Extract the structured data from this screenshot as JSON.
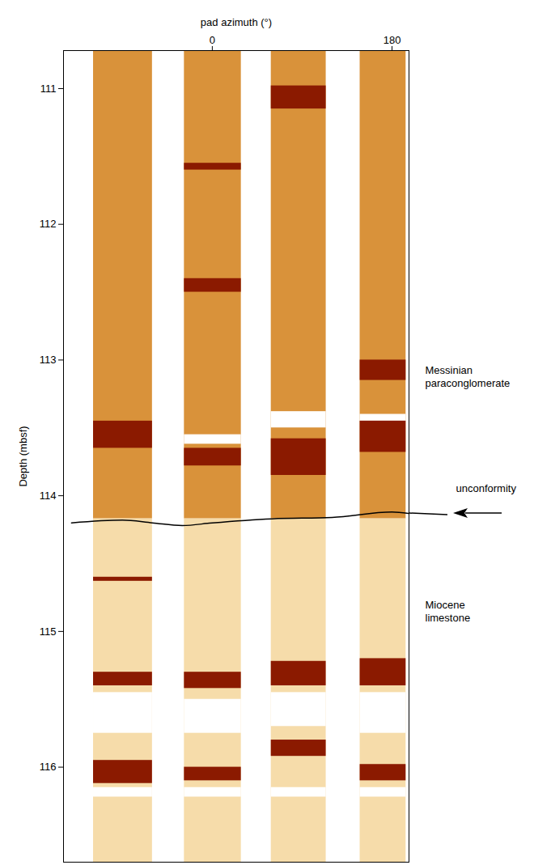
{
  "chart_data": {
    "type": "image_log",
    "xlabel": "pad azimuth (°)",
    "ylabel": "Depth (mbsf)",
    "xlim": [
      -149,
      197
    ],
    "xticks": [
      0,
      180
    ],
    "ylim": [
      110.72,
      116.7
    ],
    "yticks": [
      111,
      112,
      113,
      114,
      115,
      116
    ],
    "pads": [
      [
        -119,
        -60
      ],
      [
        -28,
        29
      ],
      [
        59,
        114
      ],
      [
        148,
        194
      ]
    ],
    "units": [
      {
        "name": "Messinian paraconglomerate",
        "top": 110.72,
        "bottom": 114.17,
        "color": "#d9923a",
        "label_depth": 113.12
      },
      {
        "name": "Miocene limestone",
        "top": 114.17,
        "bottom": 116.7,
        "color": "#f6dcaa",
        "label_depth": 114.85
      }
    ],
    "color": "#8b1a00",
    "dark_bands": [
      {
        "pad": 1,
        "top": 113.45,
        "bottom": 113.65
      },
      {
        "pad": 1,
        "top": 114.6,
        "bottom": 114.63
      },
      {
        "pad": 1,
        "top": 115.3,
        "bottom": 115.4
      },
      {
        "pad": 1,
        "top": 115.95,
        "bottom": 116.12
      },
      {
        "pad": 2,
        "top": 111.55,
        "bottom": 111.6
      },
      {
        "pad": 2,
        "top": 112.4,
        "bottom": 112.5
      },
      {
        "pad": 2,
        "top": 113.65,
        "bottom": 113.78
      },
      {
        "pad": 2,
        "top": 115.3,
        "bottom": 115.42
      },
      {
        "pad": 2,
        "top": 116.0,
        "bottom": 116.1
      },
      {
        "pad": 3,
        "top": 110.98,
        "bottom": 111.15
      },
      {
        "pad": 3,
        "top": 113.58,
        "bottom": 113.85
      },
      {
        "pad": 3,
        "top": 115.22,
        "bottom": 115.4
      },
      {
        "pad": 3,
        "top": 115.8,
        "bottom": 115.92
      },
      {
        "pad": 4,
        "top": 113.0,
        "bottom": 113.15
      },
      {
        "pad": 4,
        "top": 113.45,
        "bottom": 113.68
      },
      {
        "pad": 4,
        "top": 115.2,
        "bottom": 115.4
      },
      {
        "pad": 4,
        "top": 115.98,
        "bottom": 116.1
      }
    ],
    "light_bands": [
      {
        "pad": 2,
        "top": 113.55,
        "bottom": 113.62
      },
      {
        "pad": 3,
        "top": 113.38,
        "bottom": 113.5
      },
      {
        "pad": 4,
        "top": 113.4,
        "bottom": 113.45
      },
      {
        "pad": 1,
        "top": 115.45,
        "bottom": 115.75
      },
      {
        "pad": 2,
        "top": 115.5,
        "bottom": 115.75
      },
      {
        "pad": 3,
        "top": 115.45,
        "bottom": 115.7
      },
      {
        "pad": 4,
        "top": 115.45,
        "bottom": 115.75
      },
      {
        "pad": 1,
        "top": 116.15,
        "bottom": 116.22
      },
      {
        "pad": 2,
        "top": 116.15,
        "bottom": 116.22
      },
      {
        "pad": 3,
        "top": 116.15,
        "bottom": 116.22
      },
      {
        "pad": 4,
        "top": 116.15,
        "bottom": 116.22
      }
    ],
    "unconformity": {
      "label": "unconformity",
      "label_depth": 113.95,
      "x": [
        -141,
        -90,
        -60,
        -30,
        0,
        60,
        120,
        180,
        197
      ],
      "depth": [
        114.2,
        114.18,
        114.2,
        114.22,
        114.2,
        114.17,
        114.16,
        114.12,
        114.13
      ]
    }
  }
}
